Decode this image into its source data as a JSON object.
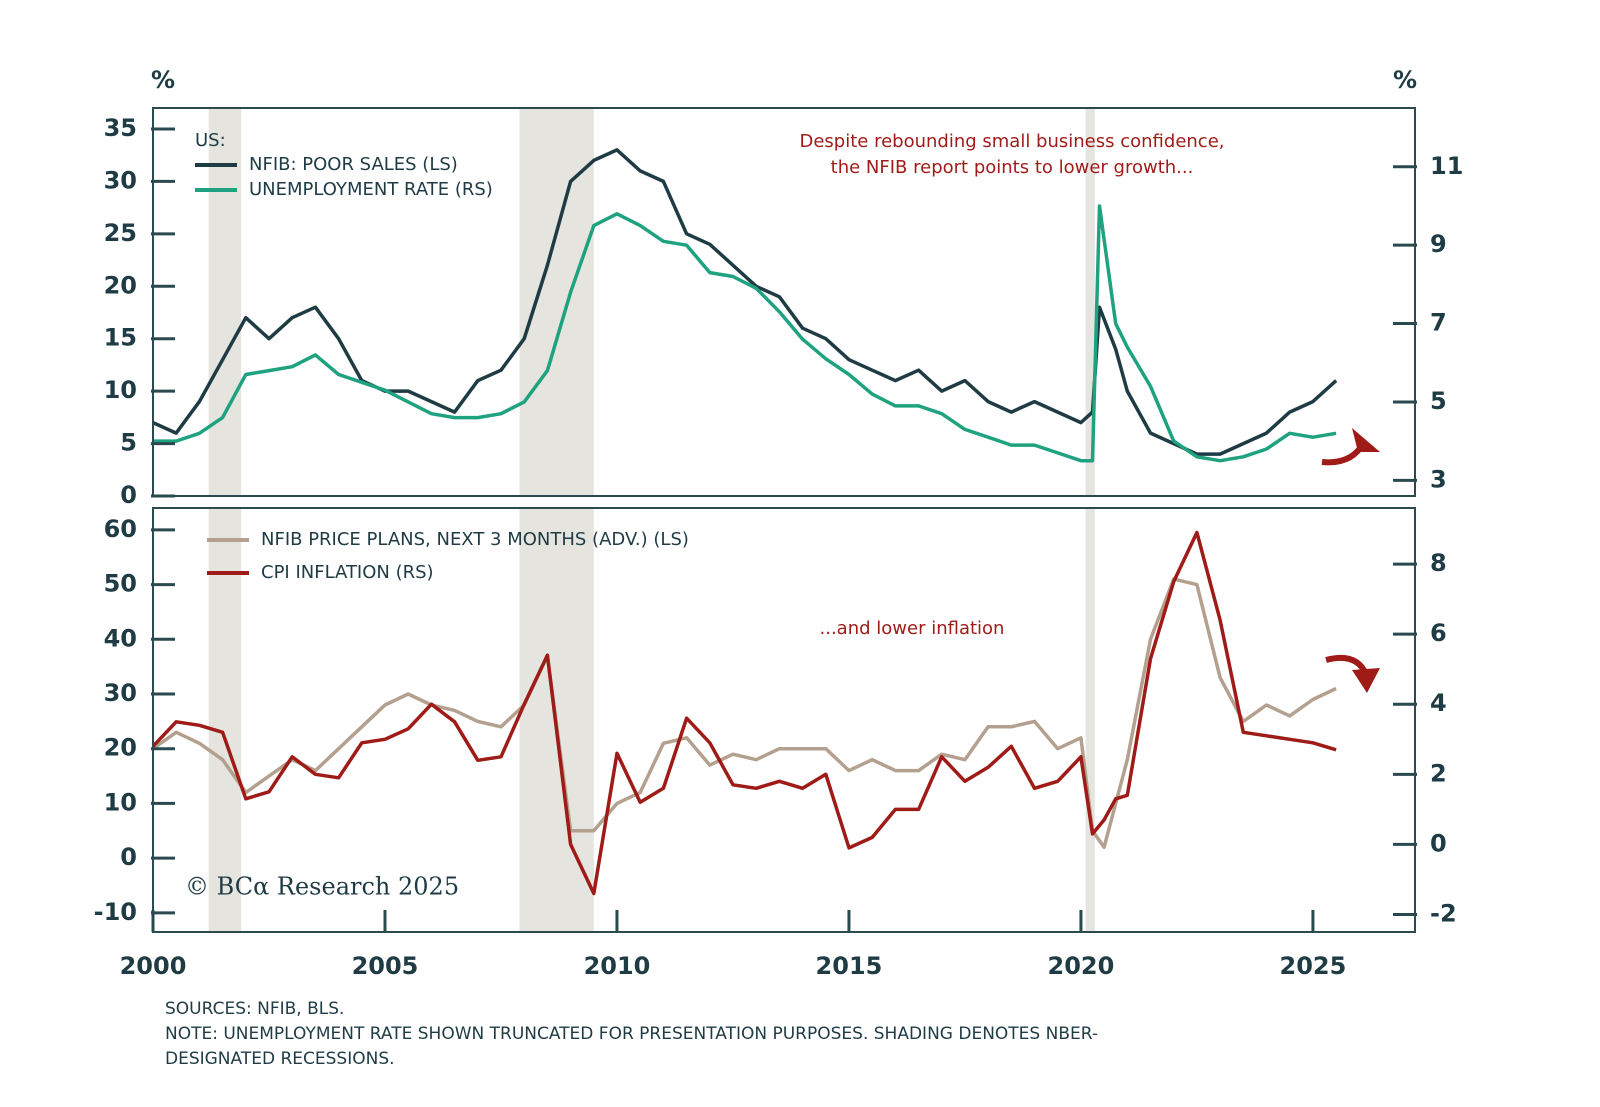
{
  "chart_data": [
    {
      "type": "line",
      "y_label": "%",
      "y2_label": "%",
      "legend_title": "US:",
      "annotation": [
        "Despite rebounding small business confidence,",
        "the NFIB report points to lower growth..."
      ],
      "xlim": [
        2000,
        2027.2
      ],
      "ylim": [
        0,
        37
      ],
      "yticks": [
        0,
        5,
        10,
        15,
        20,
        25,
        30,
        35
      ],
      "y2lim": [
        2.6,
        12.5
      ],
      "y2ticks": [
        3,
        5,
        7,
        9,
        11
      ],
      "recessions": [
        [
          2001.2,
          2001.9
        ],
        [
          2007.9,
          2009.5
        ],
        [
          2020.1,
          2020.3
        ]
      ],
      "x": [
        2000,
        2000.5,
        2001,
        2001.5,
        2002,
        2002.5,
        2003,
        2003.5,
        2004,
        2004.5,
        2005,
        2005.5,
        2006,
        2006.5,
        2007,
        2007.5,
        2008,
        2008.5,
        2009,
        2009.5,
        2010,
        2010.5,
        2011,
        2011.5,
        2012,
        2012.5,
        2013,
        2013.5,
        2014,
        2014.5,
        2015,
        2015.5,
        2016,
        2016.5,
        2017,
        2017.5,
        2018,
        2018.5,
        2019,
        2019.5,
        2020,
        2020.25,
        2020.4,
        2020.75,
        2021,
        2021.5,
        2022,
        2022.5,
        2023,
        2023.5,
        2024,
        2024.5,
        2025,
        2025.5
      ],
      "series": [
        {
          "name": "NFIB: POOR SALES (LS)",
          "color": "#1f3b44",
          "axis": "y",
          "values": [
            7,
            6,
            9,
            13,
            17,
            15,
            17,
            18,
            15,
            11,
            10,
            10,
            9,
            8,
            11,
            12,
            15,
            22,
            30,
            32,
            33,
            31,
            30,
            25,
            24,
            22,
            20,
            19,
            16,
            15,
            13,
            12,
            11,
            12,
            10,
            11,
            9,
            8,
            9,
            8,
            7,
            8,
            18,
            14,
            10,
            6,
            5,
            4,
            4,
            5,
            6,
            8,
            9,
            11
          ]
        },
        {
          "name": "UNEMPLOYMENT RATE (RS)",
          "color": "#1ea27f",
          "axis": "y2",
          "values": [
            4.0,
            4.0,
            4.2,
            4.6,
            5.7,
            5.8,
            5.9,
            6.2,
            5.7,
            5.5,
            5.3,
            5.0,
            4.7,
            4.6,
            4.6,
            4.7,
            5.0,
            5.8,
            7.8,
            9.5,
            9.8,
            9.5,
            9.1,
            9.0,
            8.3,
            8.2,
            7.9,
            7.3,
            6.6,
            6.1,
            5.7,
            5.2,
            4.9,
            4.9,
            4.7,
            4.3,
            4.1,
            3.9,
            3.9,
            3.7,
            3.5,
            3.5,
            10,
            7.0,
            6.4,
            5.4,
            4.0,
            3.6,
            3.5,
            3.6,
            3.8,
            4.2,
            4.1,
            4.2
          ]
        }
      ]
    },
    {
      "type": "line",
      "annotation": [
        "...and lower inflation"
      ],
      "xlim": [
        2000,
        2027.2
      ],
      "xticks": [
        2000,
        2005,
        2010,
        2015,
        2020,
        2025
      ],
      "ylim": [
        -13.5,
        64
      ],
      "yticks": [
        -10,
        0,
        10,
        20,
        30,
        40,
        50,
        60
      ],
      "y2lim": [
        -2.5,
        9.6
      ],
      "y2ticks": [
        -2,
        0,
        2,
        4,
        6,
        8
      ],
      "recessions": [
        [
          2001.2,
          2001.9
        ],
        [
          2007.9,
          2009.5
        ],
        [
          2020.1,
          2020.3
        ]
      ],
      "x": [
        2000,
        2000.5,
        2001,
        2001.5,
        2002,
        2002.5,
        2003,
        2003.5,
        2004,
        2004.5,
        2005,
        2005.5,
        2006,
        2006.5,
        2007,
        2007.5,
        2008,
        2008.5,
        2009,
        2009.5,
        2010,
        2010.5,
        2011,
        2011.5,
        2012,
        2012.5,
        2013,
        2013.5,
        2014,
        2014.5,
        2015,
        2015.5,
        2016,
        2016.5,
        2017,
        2017.5,
        2018,
        2018.5,
        2019,
        2019.5,
        2020,
        2020.25,
        2020.5,
        2020.75,
        2021,
        2021.5,
        2022,
        2022.5,
        2023,
        2023.5,
        2024,
        2024.5,
        2025,
        2025.5
      ],
      "series": [
        {
          "name": "NFIB PRICE PLANS, NEXT 3 MONTHS (ADV.) (LS)",
          "color": "#b3a08e",
          "axis": "y",
          "values": [
            20,
            23,
            21,
            18,
            12,
            15,
            18,
            16,
            20,
            24,
            28,
            30,
            28,
            27,
            25,
            24,
            28,
            37,
            5,
            5,
            10,
            12,
            21,
            22,
            17,
            19,
            18,
            20,
            20,
            20,
            16,
            18,
            16,
            16,
            19,
            18,
            24,
            24,
            25,
            20,
            22,
            5,
            2,
            10,
            18,
            40,
            51,
            50,
            33,
            25,
            28,
            26,
            29,
            31
          ]
        },
        {
          "name": "CPI INFLATION (RS)",
          "color": "#9e1b17",
          "axis": "y2",
          "values": [
            2.8,
            3.5,
            3.4,
            3.2,
            1.3,
            1.5,
            2.5,
            2.0,
            1.9,
            2.9,
            3.0,
            3.3,
            4.0,
            3.5,
            2.4,
            2.5,
            4.0,
            5.4,
            0.0,
            -1.4,
            2.6,
            1.2,
            1.6,
            3.6,
            2.9,
            1.7,
            1.6,
            1.8,
            1.6,
            2.0,
            -0.1,
            0.2,
            1.0,
            1.0,
            2.5,
            1.8,
            2.2,
            2.8,
            1.6,
            1.8,
            2.5,
            0.3,
            0.7,
            1.3,
            1.4,
            5.3,
            7.5,
            8.9,
            6.4,
            3.2,
            3.1,
            3.0,
            2.9,
            2.7
          ]
        }
      ]
    }
  ],
  "copyright": "© BCα Research 2025",
  "footer": {
    "sources": "SOURCES: NFIB, BLS.",
    "note": [
      "NOTE: UNEMPLOYMENT RATE SHOWN TRUNCATED FOR PRESENTATION PURPOSES. SHADING DENOTES NBER-",
      "DESIGNATED RECESSIONS."
    ]
  }
}
